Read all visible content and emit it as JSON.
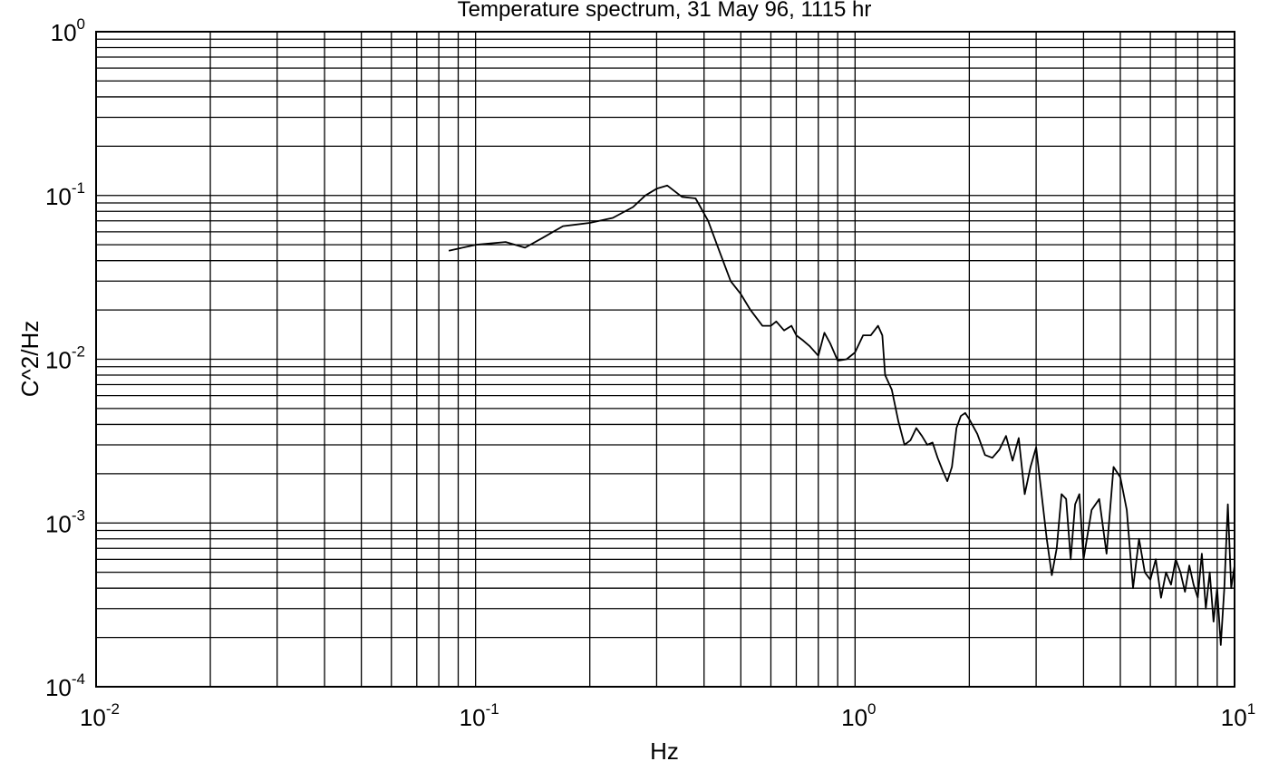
{
  "chart_data": {
    "type": "line",
    "title": "Temperature spectrum,  31  May  96,  1115 hr",
    "xlabel": "Hz",
    "ylabel": "C^2/Hz",
    "xscale": "log",
    "yscale": "log",
    "xlim": [
      0.01,
      10
    ],
    "ylim": [
      0.0001,
      1
    ],
    "grid": "on (major and minor)",
    "x_ticks": [
      {
        "base": "10",
        "exp": "-2",
        "value": 0.01
      },
      {
        "base": "10",
        "exp": "-1",
        "value": 0.1
      },
      {
        "base": "10",
        "exp": "0",
        "value": 1
      },
      {
        "base": "10",
        "exp": "1",
        "value": 10
      }
    ],
    "y_ticks": [
      {
        "base": "10",
        "exp": "0",
        "value": 1
      },
      {
        "base": "10",
        "exp": "-1",
        "value": 0.1
      },
      {
        "base": "10",
        "exp": "-2",
        "value": 0.01
      },
      {
        "base": "10",
        "exp": "-3",
        "value": 0.001
      },
      {
        "base": "10",
        "exp": "-4",
        "value": 0.0001
      }
    ],
    "series": [
      {
        "x": [
          0.085,
          0.1,
          0.12,
          0.135,
          0.15,
          0.17,
          0.2,
          0.23,
          0.26,
          0.28,
          0.3,
          0.32,
          0.35,
          0.38,
          0.41,
          0.44,
          0.47,
          0.5,
          0.53,
          0.57,
          0.6,
          0.62,
          0.65,
          0.68,
          0.7,
          0.73,
          0.76,
          0.8,
          0.83,
          0.86,
          0.9,
          0.95,
          1.0,
          1.05,
          1.1,
          1.15,
          1.18,
          1.2,
          1.25,
          1.3,
          1.35,
          1.4,
          1.45,
          1.5,
          1.55,
          1.6,
          1.65,
          1.7,
          1.75,
          1.8,
          1.85,
          1.9,
          1.95,
          2.0,
          2.1,
          2.2,
          2.3,
          2.4,
          2.5,
          2.6,
          2.7,
          2.8,
          2.9,
          3.0,
          3.1,
          3.2,
          3.3,
          3.4,
          3.5,
          3.6,
          3.7,
          3.8,
          3.9,
          4.0,
          4.2,
          4.4,
          4.6,
          4.8,
          5.0,
          5.2,
          5.4,
          5.6,
          5.8,
          6.0,
          6.2,
          6.4,
          6.6,
          6.8,
          7.0,
          7.2,
          7.4,
          7.6,
          7.8,
          8.0,
          8.2,
          8.4,
          8.6,
          8.8,
          9.0,
          9.2,
          9.4,
          9.6,
          9.8,
          10.0
        ],
        "y": [
          0.046,
          0.05,
          0.052,
          0.048,
          0.055,
          0.065,
          0.068,
          0.073,
          0.085,
          0.1,
          0.11,
          0.115,
          0.098,
          0.096,
          0.07,
          0.045,
          0.03,
          0.025,
          0.02,
          0.016,
          0.016,
          0.017,
          0.015,
          0.016,
          0.014,
          0.013,
          0.012,
          0.0105,
          0.0145,
          0.0125,
          0.0098,
          0.01,
          0.011,
          0.014,
          0.014,
          0.016,
          0.014,
          0.008,
          0.0065,
          0.0042,
          0.003,
          0.0032,
          0.0038,
          0.0034,
          0.003,
          0.0031,
          0.0025,
          0.0021,
          0.0018,
          0.0022,
          0.0038,
          0.0045,
          0.0047,
          0.0043,
          0.0035,
          0.0026,
          0.0025,
          0.0028,
          0.0034,
          0.0024,
          0.0033,
          0.0015,
          0.0022,
          0.0029,
          0.0015,
          0.0008,
          0.00048,
          0.0007,
          0.0015,
          0.0014,
          0.0006,
          0.0013,
          0.0015,
          0.0006,
          0.0012,
          0.0014,
          0.00065,
          0.0022,
          0.0019,
          0.0012,
          0.0004,
          0.0008,
          0.0005,
          0.00045,
          0.0006,
          0.00035,
          0.0005,
          0.00042,
          0.0006,
          0.0005,
          0.00038,
          0.00055,
          0.00042,
          0.00035,
          0.00065,
          0.0003,
          0.0005,
          0.00025,
          0.0004,
          0.00018,
          0.0004,
          0.0013,
          0.0004,
          0.00055
        ]
      }
    ]
  }
}
